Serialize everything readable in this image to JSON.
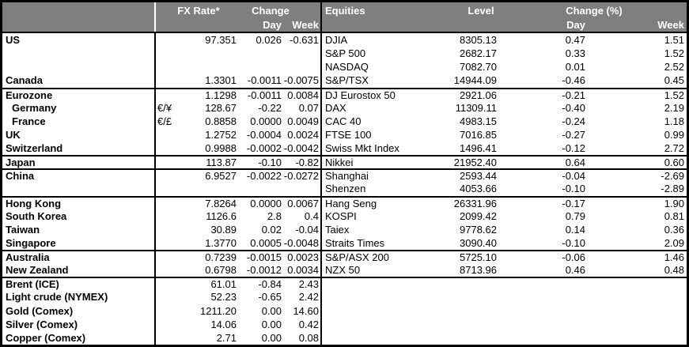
{
  "colors": {
    "header_bg": "#7f7f7f",
    "header_text": "#ffffff",
    "grid_border": "#000000",
    "body_text": "#000000",
    "background": "#ffffff"
  },
  "fx_table": {
    "headers": {
      "rate": "FX Rate*",
      "change": "Change",
      "day": "Day",
      "week": "Week"
    },
    "rows": [
      {
        "label": "US",
        "sub": "",
        "rate": "97.351",
        "day": "0.026",
        "week": "-0.631"
      },
      {
        "label": "",
        "sub": "",
        "rate": "",
        "day": "",
        "week": ""
      },
      {
        "label": "",
        "sub": "",
        "rate": "",
        "day": "",
        "week": ""
      },
      {
        "label": "Canada",
        "sub": "",
        "rate": "1.3301",
        "day": "-0.0011",
        "week": "-0.0075"
      },
      {
        "label": "Eurozone",
        "sub": "",
        "rate": "1.1298",
        "day": "-0.0011",
        "week": "0.0084",
        "group_start": true
      },
      {
        "label": "Germany",
        "sub": "€/¥",
        "rate": "128.67",
        "day": "-0.22",
        "week": "0.07",
        "indent": true
      },
      {
        "label": "France",
        "sub": "€/£",
        "rate": "0.8858",
        "day": "0.0000",
        "week": "0.0049",
        "indent": true
      },
      {
        "label": "UK",
        "sub": "",
        "rate": "1.2752",
        "day": "-0.0004",
        "week": "0.0024"
      },
      {
        "label": "Switzerland",
        "sub": "",
        "rate": "0.9988",
        "day": "-0.0002",
        "week": "-0.0042"
      },
      {
        "label": "Japan",
        "sub": "",
        "rate": "113.87",
        "day": "-0.10",
        "week": "-0.82",
        "group_start": true
      },
      {
        "label": "China",
        "sub": "",
        "rate": "6.9527",
        "day": "-0.0022",
        "week": "-0.0272",
        "group_start": true
      },
      {
        "label": "",
        "sub": "",
        "rate": "",
        "day": "",
        "week": ""
      },
      {
        "label": "Hong Kong",
        "sub": "",
        "rate": "7.8264",
        "day": "0.0000",
        "week": "0.0067",
        "group_start": true
      },
      {
        "label": "South Korea",
        "sub": "",
        "rate": "1126.6",
        "day": "2.8",
        "week": "0.4"
      },
      {
        "label": "Taiwan",
        "sub": "",
        "rate": "30.89",
        "day": "0.02",
        "week": "-0.04"
      },
      {
        "label": "Singapore",
        "sub": "",
        "rate": "1.3770",
        "day": "0.0005",
        "week": "-0.0048"
      },
      {
        "label": "Australia",
        "sub": "",
        "rate": "0.7239",
        "day": "-0.0015",
        "week": "0.0023",
        "group_start": true
      },
      {
        "label": "New Zealand",
        "sub": "",
        "rate": "0.6798",
        "day": "-0.0012",
        "week": "0.0034"
      },
      {
        "label": "Brent (ICE)",
        "sub": "",
        "rate": "61.01",
        "day": "-0.84",
        "week": "2.43",
        "group_start": true
      },
      {
        "label": "Light crude (NYMEX)",
        "sub": "",
        "rate": "52.23",
        "day": "-0.65",
        "week": "2.42"
      },
      {
        "label": "Gold (Comex)",
        "sub": "",
        "rate": "1211.20",
        "day": "0.00",
        "week": "14.60"
      },
      {
        "label": "Silver (Comex)",
        "sub": "",
        "rate": "14.06",
        "day": "0.00",
        "week": "0.42"
      },
      {
        "label": "Copper (Comex)",
        "sub": "",
        "rate": "2.71",
        "day": "0.00",
        "week": "0.08"
      }
    ]
  },
  "equity_table": {
    "headers": {
      "name": "Equities",
      "level": "Level",
      "change_pct": "Change (%)",
      "day": "Day",
      "week": "Week"
    },
    "rows": [
      {
        "label": "DJIA",
        "level": "8305.13",
        "day": "0.47",
        "week": "1.51"
      },
      {
        "label": "S&P 500",
        "level": "2682.17",
        "day": "0.33",
        "week": "1.52"
      },
      {
        "label": "NASDAQ",
        "level": "7082.70",
        "day": "0.01",
        "week": "2.52"
      },
      {
        "label": "S&P/TSX",
        "level": "14944.09",
        "day": "-0.46",
        "week": "0.45"
      },
      {
        "label": "DJ Eurostox 50",
        "level": "2921.06",
        "day": "-0.21",
        "week": "1.52",
        "group_start": true
      },
      {
        "label": "DAX",
        "level": "11309.11",
        "day": "-0.40",
        "week": "2.19"
      },
      {
        "label": "CAC 40",
        "level": "4983.15",
        "day": "-0.24",
        "week": "1.18"
      },
      {
        "label": "FTSE 100",
        "level": "7016.85",
        "day": "-0.27",
        "week": "0.99"
      },
      {
        "label": "Swiss Mkt Index",
        "level": "1496.41",
        "day": "-0.12",
        "week": "2.72"
      },
      {
        "label": "Nikkei",
        "level": "21952.40",
        "day": "0.64",
        "week": "0.60",
        "group_start": true
      },
      {
        "label": "Shanghai",
        "level": "2593.44",
        "day": "-0.04",
        "week": "-2.69",
        "group_start": true
      },
      {
        "label": "Shenzen",
        "level": "4053.66",
        "day": "-0.10",
        "week": "-2.89"
      },
      {
        "label": "Hang Seng",
        "level": "26331.96",
        "day": "-0.17",
        "week": "1.90",
        "group_start": true
      },
      {
        "label": "KOSPI",
        "level": "2099.42",
        "day": "0.79",
        "week": "0.81"
      },
      {
        "label": "Taiex",
        "level": "9778.62",
        "day": "0.14",
        "week": "0.36"
      },
      {
        "label": "Straits Times",
        "level": "3090.40",
        "day": "-0.10",
        "week": "2.09"
      },
      {
        "label": "S&P/ASX 200",
        "level": "5725.10",
        "day": "-0.06",
        "week": "1.46",
        "group_start": true
      },
      {
        "label": "NZX 50",
        "level": "8713.96",
        "day": "0.46",
        "week": "0.48"
      }
    ]
  }
}
